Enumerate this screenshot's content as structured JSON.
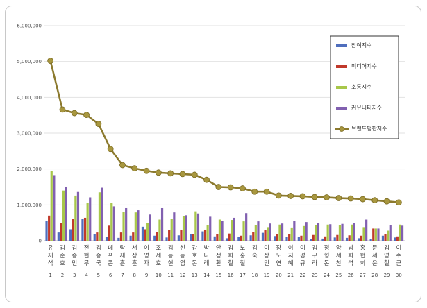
{
  "chart_data": {
    "type": "bar",
    "y_ticks": [
      "0",
      "1,000,000",
      "2,000,000",
      "3,000,000",
      "4,000,000",
      "5,000,000",
      "6,000,000"
    ],
    "ylim": [
      0,
      6000000
    ],
    "grid": true,
    "legend_position": "right",
    "numbers": [
      "1",
      "2",
      "3",
      "4",
      "5",
      "6",
      "7",
      "8",
      "9",
      "10",
      "11",
      "12",
      "13",
      "14",
      "15",
      "16",
      "17",
      "18",
      "19",
      "20",
      "21",
      "22",
      "23",
      "24",
      "25",
      "26",
      "27",
      "28",
      "29",
      "30"
    ],
    "categories": [
      "유재석",
      "김준호",
      "김종민",
      "전현무",
      "김종국",
      "데프콘",
      "탁재훈",
      "서장훈",
      "이영자",
      "조세호",
      "김동현",
      "신동엽",
      "강호동",
      "박나래",
      "안정환",
      "김희철",
      "노홍철",
      "김숙",
      "이상민",
      "장도연",
      "이지혜",
      "이경규",
      "김구라",
      "정형돈",
      "양세찬",
      "남희석",
      "홍현희",
      "문세윤",
      "김영철",
      "이수근"
    ],
    "series": [
      {
        "name": "참여지수",
        "kind": "bar",
        "color": "#4f6ebd",
        "values": [
          560000,
          230000,
          320000,
          610000,
          180000,
          100000,
          80000,
          140000,
          390000,
          140000,
          90000,
          150000,
          190000,
          260000,
          120000,
          70000,
          100000,
          150000,
          220000,
          130000,
          110000,
          100000,
          50000,
          60000,
          90000,
          80000,
          70000,
          50000,
          140000,
          90000
        ]
      },
      {
        "name": "미디어지수",
        "kind": "bar",
        "color": "#c0392b",
        "values": [
          700000,
          500000,
          600000,
          640000,
          230000,
          420000,
          230000,
          230000,
          320000,
          240000,
          300000,
          310000,
          190000,
          310000,
          180000,
          200000,
          140000,
          240000,
          290000,
          180000,
          180000,
          140000,
          160000,
          120000,
          160000,
          150000,
          140000,
          340000,
          190000,
          120000
        ]
      },
      {
        "name": "소통지수",
        "kind": "bar",
        "color": "#a8c74a",
        "values": [
          1940000,
          1400000,
          1260000,
          1050000,
          1350000,
          1060000,
          810000,
          790000,
          500000,
          590000,
          610000,
          680000,
          820000,
          440000,
          590000,
          580000,
          540000,
          440000,
          380000,
          450000,
          370000,
          410000,
          440000,
          450000,
          440000,
          450000,
          380000,
          340000,
          280000,
          450000
        ]
      },
      {
        "name": "커뮤니티지수",
        "kind": "bar",
        "color": "#8160b0",
        "values": [
          1830000,
          1510000,
          1360000,
          1210000,
          1480000,
          960000,
          910000,
          850000,
          730000,
          910000,
          790000,
          710000,
          760000,
          670000,
          560000,
          640000,
          770000,
          540000,
          480000,
          480000,
          560000,
          520000,
          500000,
          460000,
          470000,
          490000,
          590000,
          340000,
          430000,
          420000
        ]
      },
      {
        "name": "브랜드평판지수",
        "kind": "line",
        "color": "#8c7a2e",
        "values": [
          5020000,
          3660000,
          3560000,
          3510000,
          3260000,
          2560000,
          2110000,
          2020000,
          1950000,
          1900000,
          1880000,
          1860000,
          1840000,
          1700000,
          1500000,
          1490000,
          1460000,
          1370000,
          1370000,
          1260000,
          1250000,
          1240000,
          1220000,
          1210000,
          1190000,
          1180000,
          1160000,
          1130000,
          1100000,
          1070000
        ]
      }
    ]
  }
}
